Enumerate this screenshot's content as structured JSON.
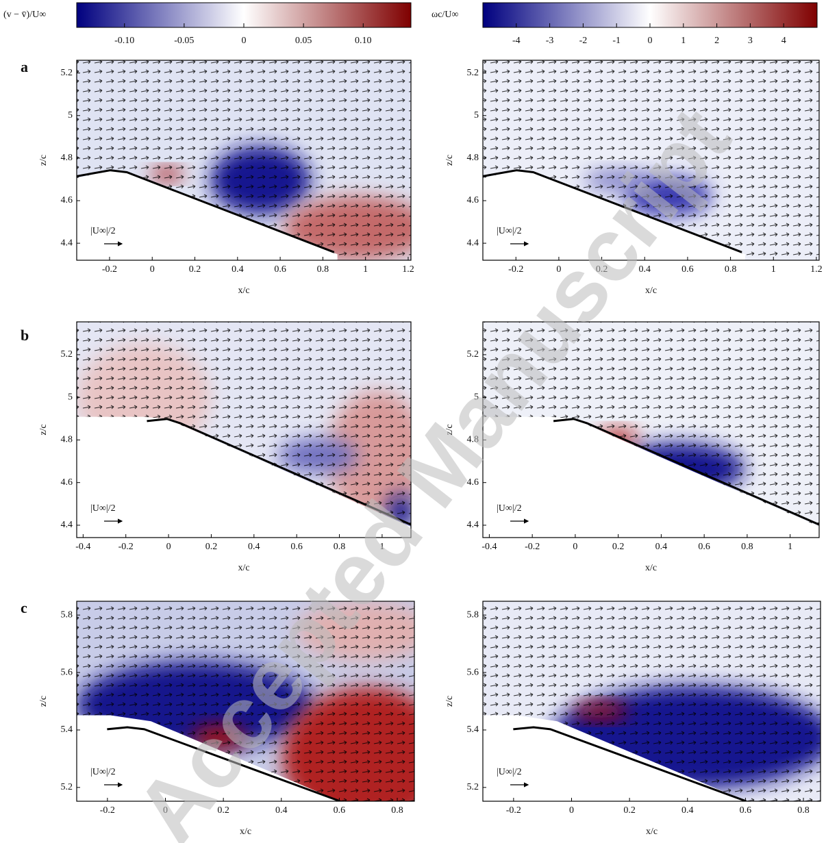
{
  "colorbars": [
    {
      "label": "(v − v̄)/U∞",
      "lim": [
        -0.14,
        0.14
      ],
      "colors": [
        "#00007f",
        "#ffffff",
        "#7f0000"
      ],
      "ticks": [
        {
          "value": -0.1,
          "label": "-0.10"
        },
        -0.05,
        0,
        0.05,
        {
          "value": 0.1,
          "label": "0.10"
        }
      ]
    },
    {
      "label": "ωc/U∞",
      "lim": [
        -5,
        5
      ],
      "colors": [
        "#00007f",
        "#ffffff",
        "#7f0000"
      ],
      "ticks": [
        -4,
        -3,
        -2,
        -1,
        0,
        1,
        2,
        3,
        4
      ]
    }
  ],
  "panel_labels": [
    "a",
    "b",
    "c"
  ],
  "watermark": "Accepted Manuscript",
  "chart_data": [
    {
      "type": "quiver",
      "xlabel": "x/c",
      "ylabel": "z/c",
      "reference_label": "|U∞|/2",
      "xlim": [
        -0.354,
        1.213
      ],
      "ylim": [
        4.32,
        5.26
      ],
      "xticks": [
        -0.2,
        0,
        0.2,
        0.4,
        0.6,
        0.8,
        1,
        1.2
      ],
      "yticks": [
        4.4,
        4.6,
        4.8,
        5,
        5.2
      ]
    },
    {
      "type": "quiver",
      "xlabel": "x/c",
      "ylabel": "z/c",
      "reference_label": "|U∞|/2",
      "xlim": [
        -0.354,
        1.213
      ],
      "ylim": [
        4.32,
        5.26
      ],
      "xticks": [
        -0.2,
        0,
        0.2,
        0.4,
        0.6,
        0.8,
        1,
        1.2
      ],
      "yticks": [
        4.4,
        4.6,
        4.8,
        5,
        5.2
      ]
    },
    {
      "type": "quiver",
      "xlabel": "x/c",
      "ylabel": "z/c",
      "reference_label": "|U∞|/2",
      "xlim": [
        -0.43,
        1.135
      ],
      "ylim": [
        4.342,
        5.354
      ],
      "xticks": [
        -0.4,
        -0.2,
        0,
        0.2,
        0.4,
        0.6,
        0.8,
        1
      ],
      "yticks": [
        4.4,
        4.6,
        4.8,
        5,
        5.2
      ]
    },
    {
      "type": "quiver",
      "xlabel": "x/c",
      "ylabel": "z/c",
      "reference_label": "|U∞|/2",
      "xlim": [
        -0.43,
        1.135
      ],
      "ylim": [
        4.342,
        5.354
      ],
      "xticks": [
        -0.4,
        -0.2,
        0,
        0.2,
        0.4,
        0.6,
        0.8,
        1
      ],
      "yticks": [
        4.4,
        4.6,
        4.8,
        5,
        5.2
      ]
    },
    {
      "type": "quiver",
      "xlabel": "x/c",
      "ylabel": "z/c",
      "reference_label": "|U∞|/2",
      "xlim": [
        -0.306,
        0.859
      ],
      "ylim": [
        5.152,
        5.848
      ],
      "xticks": [
        -0.2,
        0,
        0.2,
        0.4,
        0.6,
        0.8
      ],
      "yticks": [
        5.2,
        5.4,
        5.6,
        5.8
      ]
    },
    {
      "type": "quiver",
      "xlabel": "x/c",
      "ylabel": "z/c",
      "reference_label": "|U∞|/2",
      "xlim": [
        -0.306,
        0.859
      ],
      "ylim": [
        5.152,
        5.848
      ],
      "xticks": [
        -0.2,
        0,
        0.2,
        0.4,
        0.6,
        0.8
      ],
      "yticks": [
        5.2,
        5.4,
        5.6,
        5.8
      ]
    }
  ]
}
